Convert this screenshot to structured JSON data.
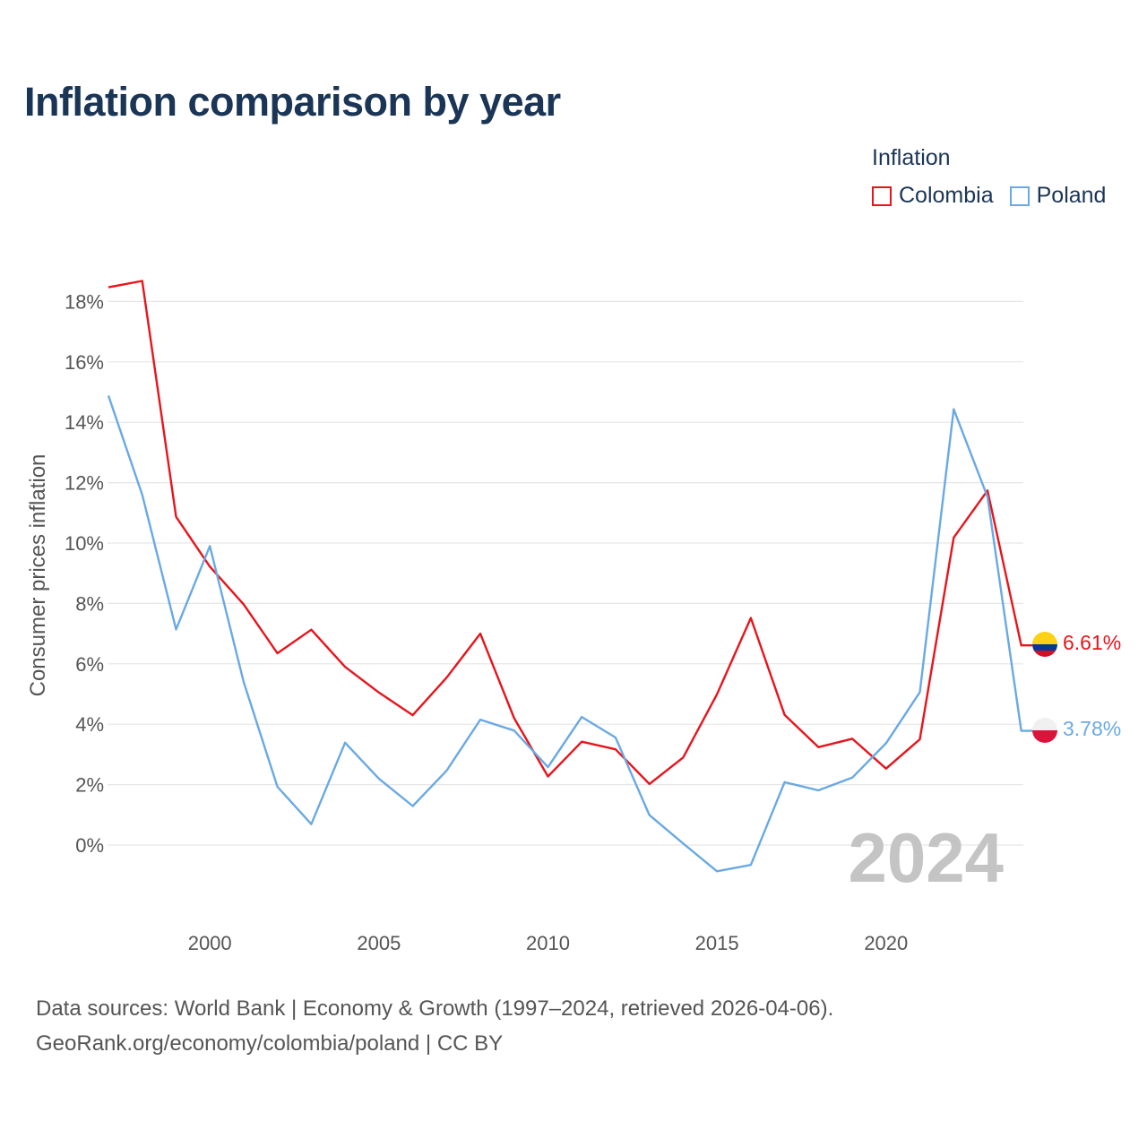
{
  "title": "Inflation comparison by year",
  "legend": {
    "title": "Inflation",
    "items": [
      {
        "label": "Colombia",
        "color": "#e8141c"
      },
      {
        "label": "Poland",
        "color": "#6aa9e3"
      }
    ]
  },
  "sources": {
    "line1": "Data sources: World Bank | Economy & Growth (1997–2024, retrieved 2026-04-06).",
    "line2": "GeoRank.org/economy/colombia/poland | CC BY"
  },
  "chart_data": {
    "type": "line",
    "title": "Inflation comparison by year",
    "xlabel": "",
    "ylabel": "Consumer prices inflation",
    "x": [
      1997,
      1998,
      1999,
      2000,
      2001,
      2002,
      2003,
      2004,
      2005,
      2006,
      2007,
      2008,
      2009,
      2010,
      2011,
      2012,
      2013,
      2014,
      2015,
      2016,
      2017,
      2018,
      2019,
      2020,
      2021,
      2022,
      2023,
      2024
    ],
    "series": [
      {
        "name": "Colombia",
        "color": "#e8141c",
        "values": [
          18.47,
          18.68,
          10.87,
          9.22,
          7.97,
          6.35,
          7.13,
          5.9,
          5.05,
          4.3,
          5.54,
          7.0,
          4.2,
          2.27,
          3.42,
          3.17,
          2.02,
          2.9,
          4.99,
          7.52,
          4.31,
          3.24,
          3.52,
          2.53,
          3.5,
          10.18,
          11.74,
          6.61
        ],
        "end_label": "6.61%"
      },
      {
        "name": "Poland",
        "color": "#6aa9e3",
        "values": [
          14.88,
          11.6,
          7.14,
          9.9,
          5.4,
          1.93,
          0.69,
          3.39,
          2.2,
          1.29,
          2.46,
          4.15,
          3.79,
          2.58,
          4.24,
          3.56,
          0.99,
          0.05,
          -0.87,
          -0.66,
          2.08,
          1.81,
          2.23,
          3.37,
          5.06,
          14.43,
          11.53,
          3.78
        ],
        "end_label": "3.78%"
      }
    ],
    "x_ticks": [
      "2000",
      "2005",
      "2010",
      "2015",
      "2020"
    ],
    "y_ticks": [
      "0%",
      "2%",
      "4%",
      "6%",
      "8%",
      "10%",
      "12%",
      "14%",
      "16%",
      "18%"
    ],
    "xlim": [
      1997,
      2024
    ],
    "ylim": [
      -2,
      18.8
    ],
    "grid": true,
    "legend_position": "top-right",
    "watermark_year": "2024"
  }
}
